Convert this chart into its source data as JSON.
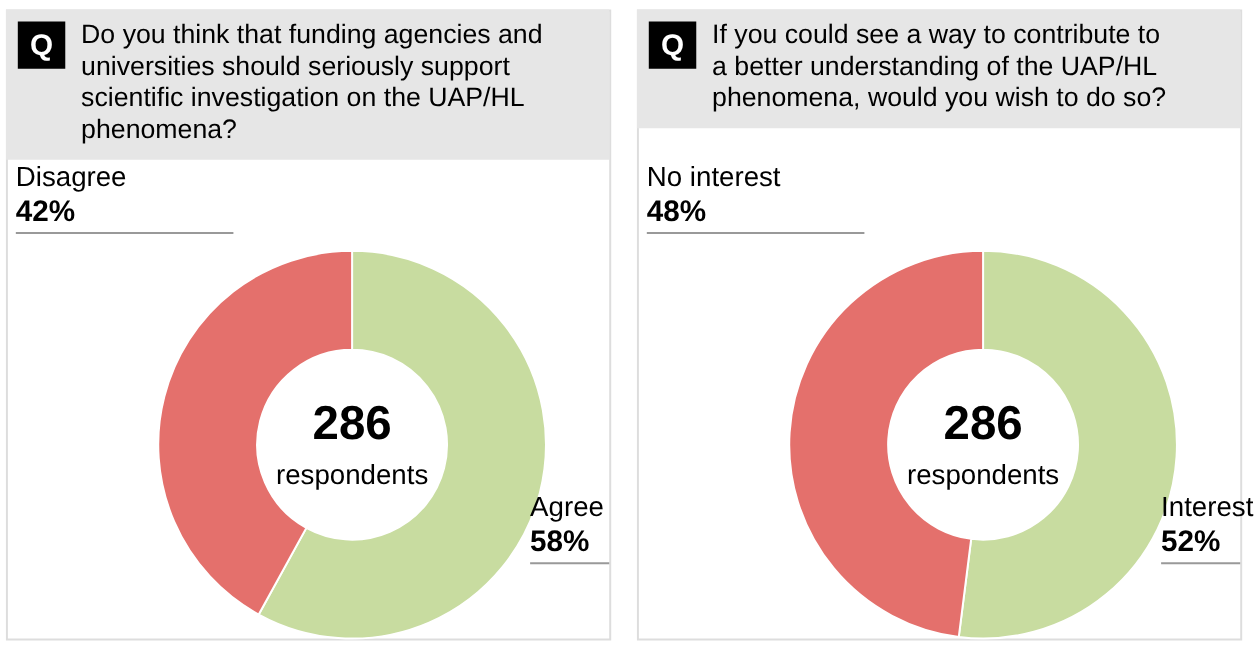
{
  "chart_data": [
    {
      "type": "donut",
      "title": "Do you think that funding agencies and universities should seriously support scientific investigation on the UAP/HL phenomena?",
      "categories": [
        "Agree",
        "Disagree"
      ],
      "values": [
        58,
        42
      ],
      "value_labels": [
        "58%",
        "42%"
      ],
      "colors": [
        "#c8dca0",
        "#e4706c"
      ],
      "annotations": [
        "Q",
        "286",
        "respondents"
      ],
      "legend": false
    },
    {
      "type": "donut",
      "title": "If you could see a way to contribute to a better understanding of the UAP/HL phenomena, would you wish to do so?",
      "categories": [
        "Interest",
        "No interest"
      ],
      "values": [
        52,
        48
      ],
      "value_labels": [
        "52%",
        "48%"
      ],
      "colors": [
        "#c8dca0",
        "#e4706c"
      ],
      "annotations": [
        "Q",
        "286",
        "respondents"
      ],
      "legend": false
    }
  ]
}
